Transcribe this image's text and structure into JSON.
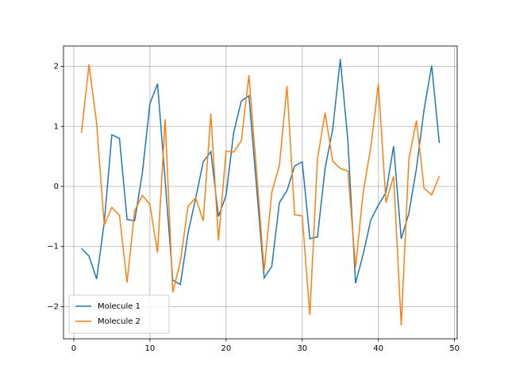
{
  "chart_data": {
    "type": "line",
    "x": [
      1,
      2,
      3,
      4,
      5,
      6,
      7,
      8,
      9,
      10,
      11,
      12,
      13,
      14,
      15,
      16,
      17,
      18,
      19,
      20,
      21,
      22,
      23,
      24,
      25,
      26,
      27,
      28,
      29,
      30,
      31,
      32,
      33,
      34,
      35,
      36,
      37,
      38,
      39,
      40,
      41,
      42,
      43,
      44,
      45,
      46,
      47,
      48
    ],
    "series": [
      {
        "name": "Molecule 1",
        "color": "#1f77b4",
        "values": [
          -1.03,
          -1.16,
          -1.54,
          -0.6,
          0.86,
          0.8,
          -0.55,
          -0.57,
          0.22,
          1.38,
          1.71,
          0.1,
          -1.56,
          -1.63,
          -0.78,
          -0.2,
          0.41,
          0.58,
          -0.5,
          -0.15,
          0.9,
          1.42,
          1.51,
          0.0,
          -1.52,
          -1.33,
          -0.27,
          -0.07,
          0.34,
          0.41,
          -0.87,
          -0.84,
          0.3,
          0.95,
          2.12,
          0.75,
          -1.61,
          -1.13,
          -0.56,
          -0.31,
          -0.1,
          0.67,
          -0.87,
          -0.45,
          0.3,
          1.28,
          2.01,
          0.72
        ]
      },
      {
        "name": "Molecule 2",
        "color": "#ff7f0e",
        "values": [
          0.89,
          2.03,
          1.05,
          -0.64,
          -0.35,
          -0.48,
          -1.6,
          -0.4,
          -0.15,
          -0.3,
          -1.1,
          1.12,
          -1.76,
          -1.25,
          -0.33,
          -0.19,
          -0.57,
          1.21,
          -0.9,
          0.59,
          0.57,
          0.76,
          1.85,
          0.25,
          -1.4,
          -0.1,
          0.35,
          1.67,
          -0.47,
          -0.49,
          -2.14,
          0.45,
          1.23,
          0.42,
          0.3,
          0.26,
          -1.35,
          -0.1,
          0.65,
          1.71,
          -0.27,
          0.17,
          -2.31,
          0.45,
          1.1,
          -0.03,
          -0.14,
          0.17
        ]
      }
    ],
    "xlim": [
      -1.35,
      50.35
    ],
    "xticks": [
      0,
      10,
      20,
      30,
      40,
      50
    ],
    "ylim": [
      -2.535,
      2.337
    ],
    "yticks": [
      {
        "value": -2,
        "label": "−2"
      },
      {
        "value": -1,
        "label": "−1"
      },
      0,
      1,
      2
    ],
    "grid": true,
    "legend": "lower left"
  }
}
